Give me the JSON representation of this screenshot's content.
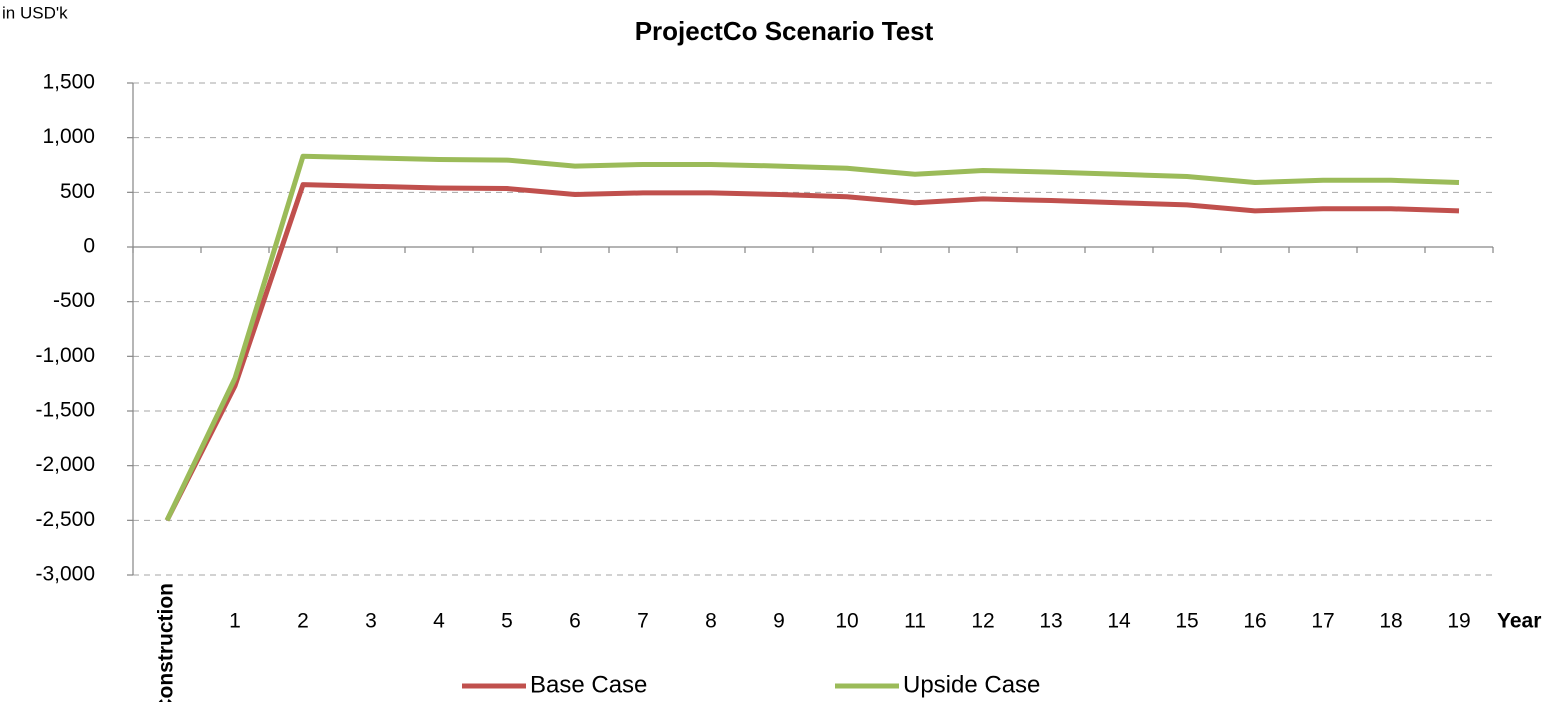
{
  "chart_data": {
    "type": "line",
    "title": "ProjectCo Scenario Test",
    "y_axis_label": "in USD'k",
    "x_axis_label": "Year",
    "categories": [
      "Construction",
      "1",
      "2",
      "3",
      "4",
      "5",
      "6",
      "7",
      "8",
      "9",
      "10",
      "11",
      "12",
      "13",
      "14",
      "15",
      "16",
      "17",
      "18",
      "19"
    ],
    "series": [
      {
        "name": "Base Case",
        "color": "#c0504d",
        "values": [
          -2500,
          -1270,
          570,
          555,
          540,
          535,
          480,
          495,
          495,
          480,
          460,
          405,
          440,
          425,
          405,
          385,
          330,
          350,
          350,
          330
        ]
      },
      {
        "name": "Upside Case",
        "color": "#9bbb59",
        "values": [
          -2500,
          -1200,
          830,
          815,
          800,
          795,
          740,
          755,
          755,
          740,
          720,
          665,
          700,
          685,
          665,
          645,
          590,
          610,
          610,
          590
        ]
      }
    ],
    "ylim": [
      -3000,
      1500
    ],
    "yticks": [
      {
        "value": -3000,
        "label": "-3,000"
      },
      {
        "value": -2500,
        "label": "-2,500"
      },
      {
        "value": -2000,
        "label": "-2,000"
      },
      {
        "value": -1500,
        "label": "-1,500"
      },
      {
        "value": -1000,
        "label": "-1,000"
      },
      -500,
      0,
      500,
      {
        "value": 1000,
        "label": "1,000"
      },
      {
        "value": 1500,
        "label": "1,500"
      }
    ],
    "grid": true,
    "negative_tick_color": "#c00000",
    "legend": "bottom"
  }
}
